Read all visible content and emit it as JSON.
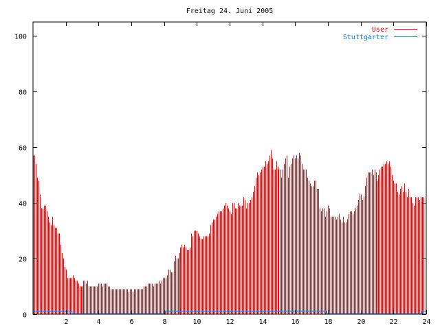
{
  "chart_data": {
    "type": "bar",
    "title": "Freitag 24. Juni 2005",
    "xlabel": "",
    "ylabel": "",
    "xlim": [
      0,
      24
    ],
    "ylim": [
      0,
      105
    ],
    "x_ticks": [
      2,
      4,
      6,
      8,
      10,
      12,
      14,
      16,
      18,
      20,
      22,
      24
    ],
    "y_ticks": [
      0,
      20,
      40,
      60,
      80,
      100
    ],
    "grid": false,
    "legend_position": "top-right",
    "interval_hours": 0.0833333,
    "series": [
      {
        "name": "User",
        "style": "impulses",
        "color": "#ff0000",
        "values": [
          57,
          57,
          54,
          49,
          48,
          43,
          38,
          38,
          39,
          39,
          37,
          35,
          33,
          32,
          35,
          32,
          31,
          31,
          29,
          29,
          25,
          22,
          20,
          17,
          16,
          13,
          13,
          13,
          13,
          14,
          13,
          12,
          12,
          11,
          10,
          10,
          10,
          12,
          12,
          11,
          12,
          10,
          10,
          10,
          10,
          10,
          10,
          10,
          11,
          11,
          11,
          10,
          11,
          11,
          11,
          10,
          10,
          9,
          9,
          9,
          9,
          9,
          9,
          9,
          9,
          9,
          9,
          9,
          9,
          9,
          8,
          9,
          9,
          8,
          9,
          9,
          9,
          9,
          9,
          9,
          9,
          10,
          10,
          10,
          11,
          11,
          11,
          11,
          10,
          11,
          11,
          11,
          12,
          11,
          12,
          13,
          13,
          13,
          14,
          16,
          16,
          15,
          15,
          19,
          21,
          20,
          20,
          22,
          24,
          25,
          24,
          25,
          24,
          23,
          23,
          24,
          29,
          28,
          30,
          30,
          30,
          29,
          28,
          27,
          27,
          28,
          28,
          28,
          28,
          29,
          32,
          33,
          34,
          34,
          35,
          36,
          37,
          37,
          37,
          38,
          39,
          40,
          39,
          38,
          37,
          36,
          40,
          40,
          38,
          38,
          40,
          39,
          39,
          39,
          42,
          41,
          38,
          40,
          40,
          41,
          42,
          44,
          46,
          49,
          51,
          50,
          51,
          52,
          53,
          53,
          55,
          54,
          55,
          57,
          59,
          56,
          52,
          52,
          55,
          53,
          52,
          52,
          49,
          52,
          54,
          56,
          57,
          49,
          53,
          54,
          56,
          57,
          56,
          57,
          56,
          58,
          57,
          54,
          52,
          52,
          52,
          49,
          48,
          47,
          46,
          46,
          48,
          48,
          45,
          45,
          38,
          37,
          38,
          38,
          35,
          37,
          39,
          38,
          35,
          35,
          35,
          35,
          34,
          35,
          36,
          34,
          33,
          35,
          33,
          33,
          34,
          36,
          37,
          37,
          36,
          37,
          38,
          39,
          41,
          43,
          43,
          41,
          42,
          46,
          49,
          51,
          51,
          51,
          52,
          50,
          52,
          51,
          48,
          50,
          52,
          53,
          53,
          54,
          54,
          55,
          54,
          55,
          53,
          50,
          48,
          47,
          47,
          44,
          43,
          45,
          46,
          44,
          47,
          44,
          42,
          45,
          42,
          42,
          40,
          39,
          42,
          42,
          42,
          41,
          42,
          42,
          42
        ]
      },
      {
        "name": "Stuttgarter",
        "style": "steps",
        "color": "#0080ff",
        "steps": [
          [
            0,
            1
          ],
          [
            2.38,
            0
          ],
          [
            8.06,
            1
          ],
          [
            17.88,
            0
          ],
          [
            23.75,
            1
          ],
          [
            24,
            1
          ]
        ]
      }
    ]
  }
}
